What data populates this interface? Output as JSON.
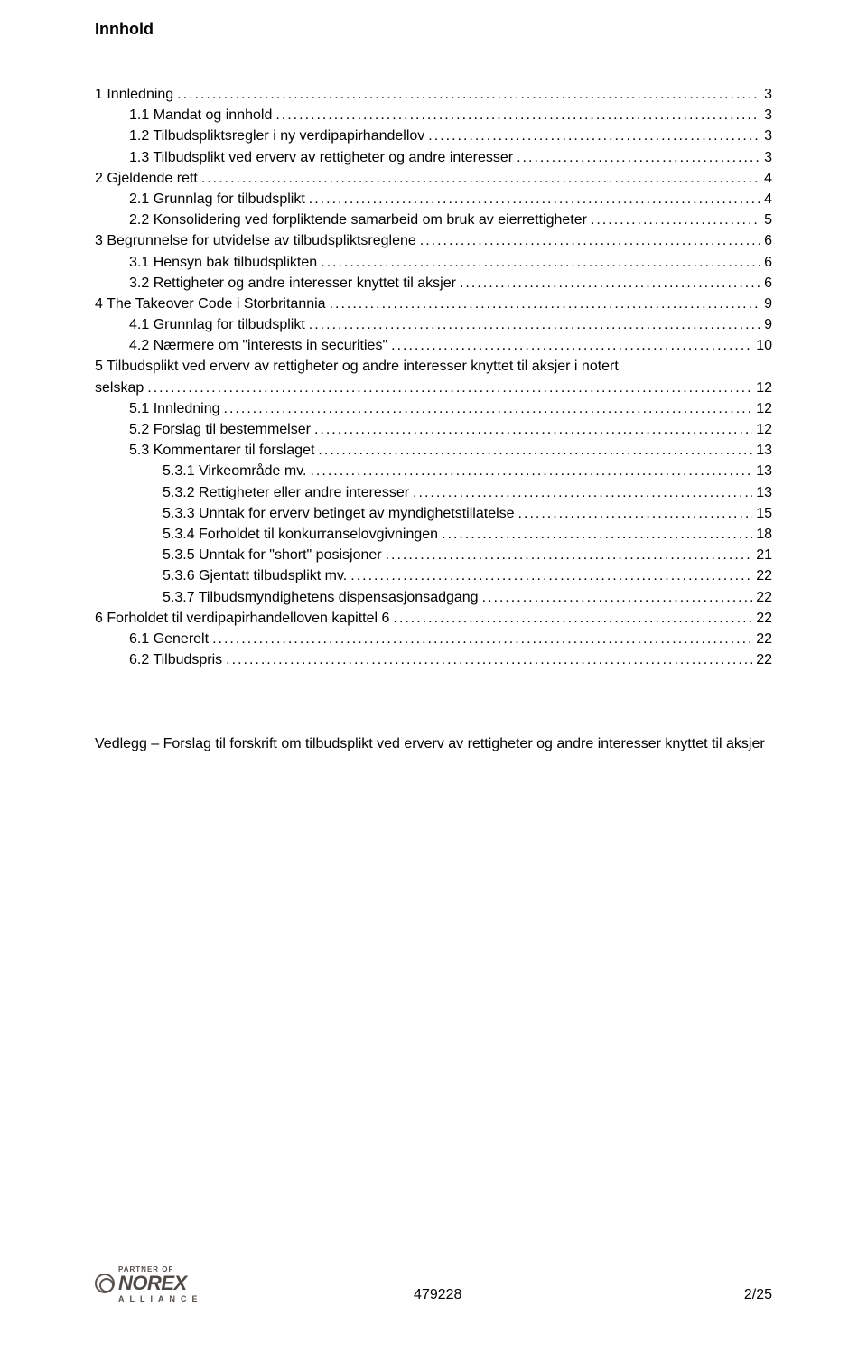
{
  "title": "Innhold",
  "toc": [
    {
      "indent": 0,
      "label": "1    Innledning",
      "page": "3"
    },
    {
      "indent": 1,
      "label": "1.1    Mandat og innhold",
      "page": "3"
    },
    {
      "indent": 1,
      "label": "1.2    Tilbudspliktsregler i ny verdipapirhandellov",
      "page": "3"
    },
    {
      "indent": 1,
      "label": "1.3    Tilbudsplikt ved erverv av rettigheter og andre interesser",
      "page": "3"
    },
    {
      "indent": 0,
      "label": "2    Gjeldende rett",
      "page": "4"
    },
    {
      "indent": 1,
      "label": "2.1    Grunnlag for tilbudsplikt",
      "page": "4"
    },
    {
      "indent": 1,
      "label": "2.2    Konsolidering ved forpliktende samarbeid om bruk av eierrettigheter",
      "page": "5"
    },
    {
      "indent": 0,
      "label": "3    Begrunnelse for utvidelse av tilbudspliktsreglene",
      "page": "6"
    },
    {
      "indent": 1,
      "label": "3.1    Hensyn bak tilbudsplikten",
      "page": "6"
    },
    {
      "indent": 1,
      "label": "3.2    Rettigheter og andre interesser knyttet til aksjer",
      "page": "6"
    },
    {
      "indent": 0,
      "label": "4    The Takeover Code i Storbritannia",
      "page": "9"
    },
    {
      "indent": 1,
      "label": "4.1    Grunnlag for tilbudsplikt",
      "page": "9"
    },
    {
      "indent": 1,
      "label": "4.2    Nærmere om \"interests in securities\"",
      "page": "10"
    },
    {
      "wrap": true,
      "line1": "5    Tilbudsplikt ved erverv av rettigheter og andre interesser knyttet til aksjer i notert",
      "line2_label": "selskap",
      "page": "12"
    },
    {
      "indent": 1,
      "label": "5.1    Innledning",
      "page": "12"
    },
    {
      "indent": 1,
      "label": "5.2    Forslag til bestemmelser",
      "page": "12"
    },
    {
      "indent": 1,
      "label": "5.3    Kommentarer til forslaget",
      "page": "13"
    },
    {
      "indent": 2,
      "label": "5.3.1    Virkeområde mv.",
      "page": "13"
    },
    {
      "indent": 2,
      "label": "5.3.2    Rettigheter eller andre interesser",
      "page": "13"
    },
    {
      "indent": 2,
      "label": "5.3.3    Unntak for erverv betinget av myndighetstillatelse",
      "page": "15"
    },
    {
      "indent": 2,
      "label": "5.3.4    Forholdet til konkurranselovgivningen",
      "page": "18"
    },
    {
      "indent": 2,
      "label": "5.3.5    Unntak for \"short\" posisjoner",
      "page": "21"
    },
    {
      "indent": 2,
      "label": "5.3.6    Gjentatt tilbudsplikt mv.",
      "page": "22"
    },
    {
      "indent": 2,
      "label": "5.3.7    Tilbudsmyndighetens dispensasjonsadgang",
      "page": "22"
    },
    {
      "indent": 0,
      "label": "6    Forholdet til verdipapirhandelloven kapittel 6",
      "page": "22"
    },
    {
      "indent": 1,
      "label": "6.1    Generelt",
      "page": "22"
    },
    {
      "indent": 1,
      "label": "6.2    Tilbudspris",
      "page": "22"
    }
  ],
  "appendix": "Vedlegg – Forslag til forskrift om tilbudsplikt ved erverv av rettigheter og andre interesser knyttet til aksjer",
  "footer": {
    "logo_top": "PARTNER OF",
    "logo_name": "NOREX",
    "logo_sub": "ALLIANCE",
    "doc_id": "479228",
    "page_counter": "2/25"
  }
}
